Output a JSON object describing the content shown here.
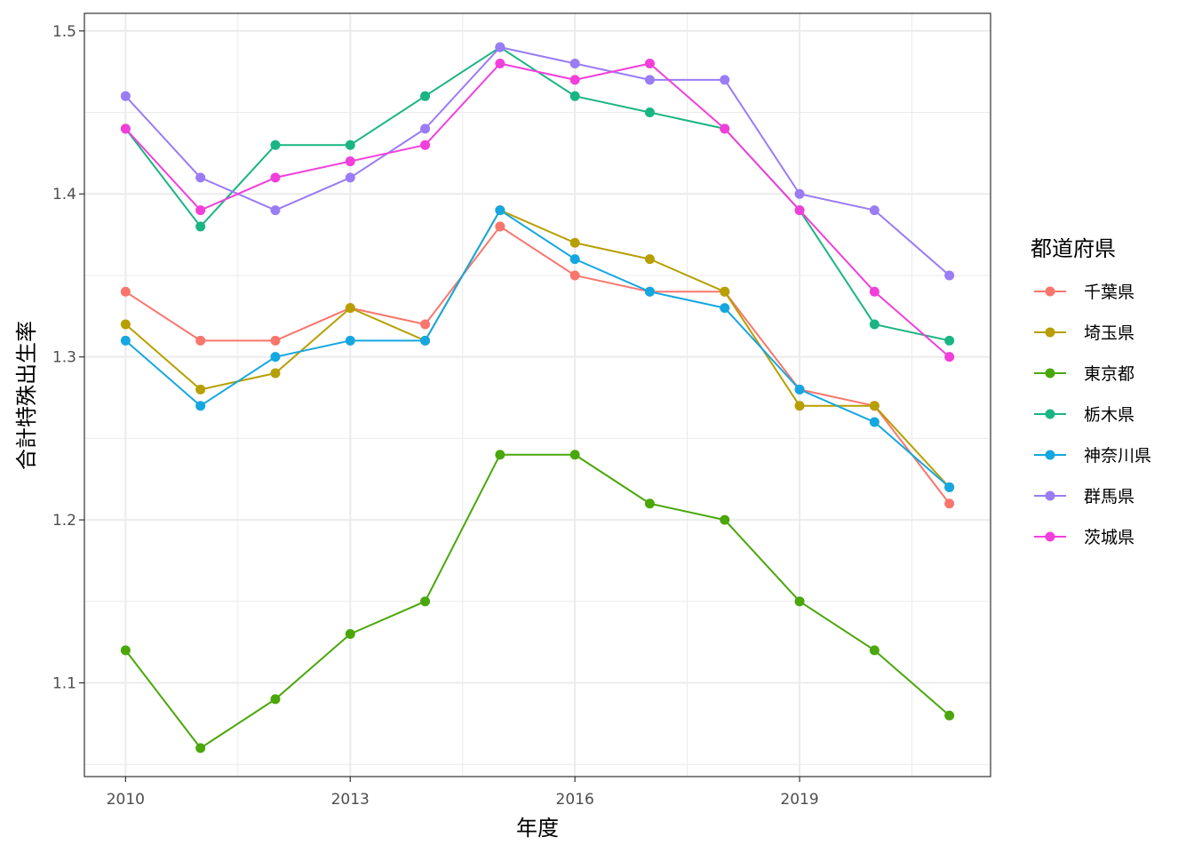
{
  "chart_data": {
    "type": "line",
    "title": "",
    "xlabel": "年度",
    "ylabel": "合計特殊出生率",
    "xlim": [
      2009.45,
      2021.55
    ],
    "ylim": [
      1.0425,
      1.5108
    ],
    "x_ticks": [
      2010,
      2013,
      2016,
      2019
    ],
    "x_tick_labels": [
      "2010",
      "2013",
      "2016",
      "2019"
    ],
    "x_minor_ticks": [
      2011.5,
      2014.5,
      2017.5,
      2020.5
    ],
    "y_ticks": [
      1.1,
      1.2,
      1.3,
      1.4,
      1.5
    ],
    "y_tick_labels": [
      "1.1",
      "1.2",
      "1.3",
      "1.4",
      "1.5"
    ],
    "y_minor_ticks": [
      1.05,
      1.15,
      1.25,
      1.35,
      1.45
    ],
    "grid": true,
    "legend": {
      "title": "都道府県",
      "position": "right"
    },
    "x": [
      2010,
      2011,
      2012,
      2013,
      2014,
      2015,
      2016,
      2017,
      2018,
      2019,
      2020,
      2021
    ],
    "series": [
      {
        "name": "千葉県",
        "color": "#F8766D",
        "values": [
          1.34,
          1.31,
          1.31,
          1.33,
          1.32,
          1.38,
          1.35,
          1.34,
          1.34,
          1.28,
          1.27,
          1.21
        ]
      },
      {
        "name": "埼玉県",
        "color": "#B79F00",
        "values": [
          1.32,
          1.28,
          1.29,
          1.33,
          1.31,
          1.39,
          1.37,
          1.36,
          1.34,
          1.27,
          1.27,
          1.22
        ]
      },
      {
        "name": "東京都",
        "color": "#4AA70A",
        "values": [
          1.12,
          1.06,
          1.09,
          1.13,
          1.15,
          1.24,
          1.24,
          1.21,
          1.2,
          1.15,
          1.12,
          1.08
        ]
      },
      {
        "name": "栃木県",
        "color": "#1AB584",
        "values": [
          1.44,
          1.38,
          1.43,
          1.43,
          1.46,
          1.49,
          1.46,
          1.45,
          1.44,
          1.39,
          1.32,
          1.31
        ]
      },
      {
        "name": "神奈川県",
        "color": "#15A7E1",
        "values": [
          1.31,
          1.27,
          1.3,
          1.31,
          1.31,
          1.39,
          1.36,
          1.34,
          1.33,
          1.28,
          1.26,
          1.22
        ]
      },
      {
        "name": "群馬県",
        "color": "#9A7CF5",
        "values": [
          1.46,
          1.41,
          1.39,
          1.41,
          1.44,
          1.49,
          1.48,
          1.47,
          1.47,
          1.4,
          1.39,
          1.35
        ]
      },
      {
        "name": "茨城県",
        "color": "#F23FDB",
        "values": [
          1.44,
          1.39,
          1.41,
          1.42,
          1.43,
          1.48,
          1.47,
          1.48,
          1.44,
          1.39,
          1.34,
          1.3
        ]
      }
    ]
  }
}
